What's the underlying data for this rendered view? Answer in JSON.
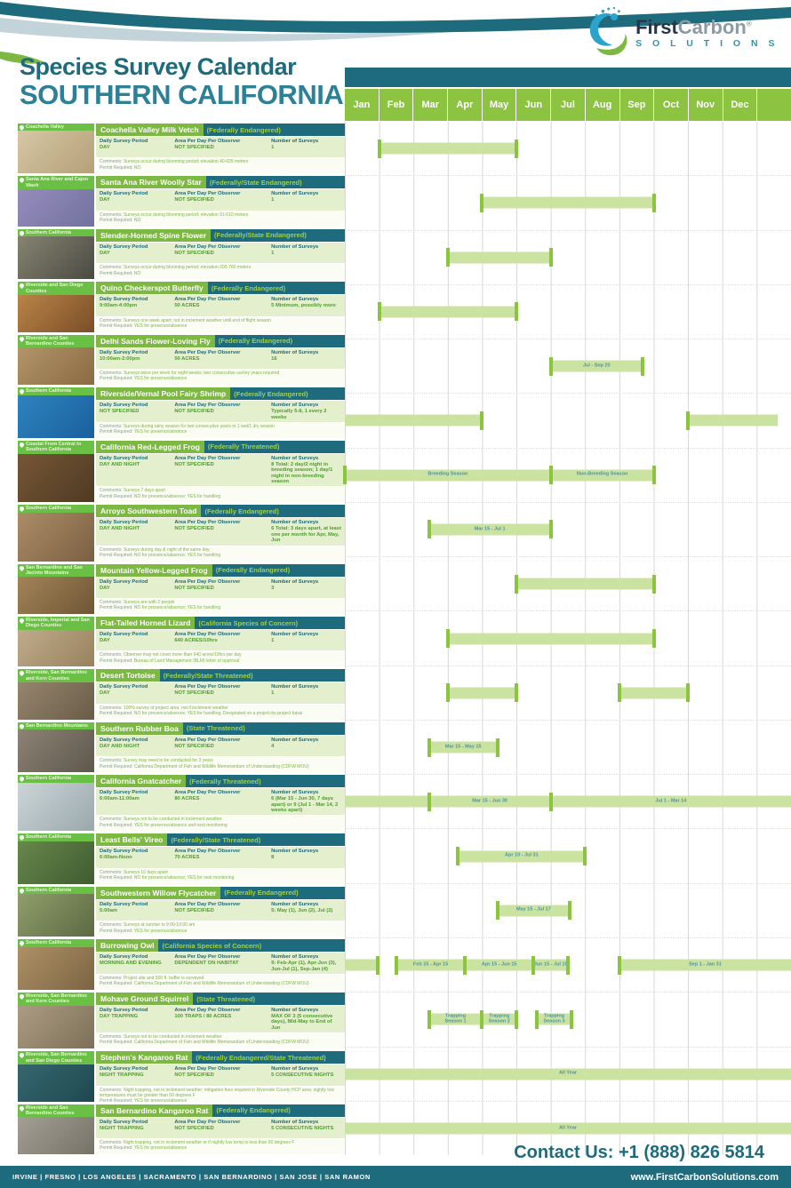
{
  "header": {
    "logo": {
      "word1": "First",
      "word2": "Carbon",
      "reg": "®",
      "word3": "S O L U T I O N S"
    },
    "title_line1": "Species Survey Calendar",
    "title_line2": "SOUTHERN CALIFORNIA"
  },
  "colors": {
    "teal": "#1d6b7d",
    "green": "#7cb842",
    "month_green": "#8cc441",
    "bar_fill": "#cbe3a0",
    "bar_cap": "#8bc43f",
    "panel_green": "#e3efcd"
  },
  "calendar": {
    "months": [
      "Jan",
      "Feb",
      "Mar",
      "Apr",
      "May",
      "Jun",
      "Jul",
      "Aug",
      "Sep",
      "Oct",
      "Nov",
      "Dec"
    ]
  },
  "labels": {
    "daily_survey_period": "Daily Survey Period",
    "area_per_day": "Area Per Day Per Observer",
    "num_surveys": "Number of Surveys",
    "comments": "Comments:",
    "permit": "Permit Required:"
  },
  "species": [
    {
      "location": "Coachella Valley",
      "name": "Coachella Valley Milk Vetch",
      "status": "(Federally Endangered)",
      "daily_survey_period": "DAY",
      "area_per_day": "NOT SPECIFIED",
      "num_surveys": "1",
      "comments": "Surveys occur during blooming period; elevation 40-655 meters",
      "permit": "NO",
      "photo_colors": [
        "#d8c9a8",
        "#b5a078"
      ],
      "bars": [
        {
          "s": 1,
          "e": 5
        }
      ]
    },
    {
      "location": "Santa Ana River and Cajon Wash",
      "name": "Santa Ana River Woolly Star",
      "status": "(Federally/State Endangered)",
      "daily_survey_period": "DAY",
      "area_per_day": "NOT SPECIFIED",
      "num_surveys": "1",
      "comments": "Surveys occur during blooming period; elevation 91-610 meters",
      "permit": "NO",
      "photo_colors": [
        "#9b8fc0",
        "#72729e"
      ],
      "bars": [
        {
          "s": 4,
          "e": 9
        }
      ]
    },
    {
      "location": "Southern California",
      "name": "Slender-Horned Spine Flower",
      "status": "(Federally/State Endangered)",
      "daily_survey_period": "DAY",
      "area_per_day": "NOT SPECIFIED",
      "num_surveys": "1",
      "comments": "Surveys occur during blooming period; elevation 200-760 meters",
      "permit": "NO",
      "photo_colors": [
        "#8a8774",
        "#4a4a42"
      ],
      "bars": [
        {
          "s": 3,
          "e": 6
        }
      ]
    },
    {
      "location": "Riverside and San Diego Counties",
      "name": "Quino Checkerspot Butterfly",
      "status": "(Federally Endangered)",
      "daily_survey_period": "9:00am-4:00pm",
      "area_per_day": "50 ACRES",
      "num_surveys": "5 Minimum, possibly more",
      "comments": "Surveys one week apart; not in inclement weather until end of flight season",
      "permit": "YES for presence/absence",
      "photo_colors": [
        "#c08a4a",
        "#7a4e28"
      ],
      "bars": [
        {
          "s": 1,
          "e": 5
        }
      ]
    },
    {
      "location": "Riverside and San Bernardino Counties",
      "name": "Delhi Sands Flower-Loving Fly",
      "status": "(Federally Endangered)",
      "daily_survey_period": "10:00am-2:00pm",
      "area_per_day": "50 ACRES",
      "num_surveys": "16",
      "comments": "Surveys twice per week for eight weeks; two consecutive survey years required",
      "permit": "YES for presence/absence",
      "photo_colors": [
        "#b89a6e",
        "#8a6a42"
      ],
      "bars": [
        {
          "s": 6,
          "e": 8.67,
          "label": "Jul - Sep 20"
        }
      ]
    },
    {
      "location": "Southern California",
      "name": "Riverside/Vernal Pool Fairy Shrimp",
      "status": "(Federally Endangered)",
      "daily_survey_period": "NOT SPECIFIED",
      "area_per_day": "NOT SPECIFIED",
      "num_surveys": "Typically 5-8, 1 every 2 weeks",
      "comments": "Surveys during rainy season for two consecutive years or 1 wet/1 dry season",
      "permit": "YES for presence/absence",
      "photo_colors": [
        "#2f86c0",
        "#1a5f9e"
      ],
      "bars": [
        {
          "s": 0,
          "e": 4,
          "cs": false
        },
        {
          "s": 10,
          "e": 12.6,
          "ce": false
        }
      ]
    },
    {
      "location": "Coastal From Central to Southern California",
      "name": "California Red-Legged Frog",
      "status": "(Federally Threatened)",
      "daily_survey_period": "DAY AND NIGHT",
      "area_per_day": "NOT SPECIFIED",
      "num_surveys": "8 Total: 2 day/2 night in breeding season; 1 day/1 night in non-breeding season",
      "comments": "Surveys 7 days apart",
      "permit": "NO for presence/absence; YES for handling",
      "photo_colors": [
        "#7a5a38",
        "#4e3a22"
      ],
      "bars": [
        {
          "s": 0,
          "e": 6,
          "label": "Breeding Season"
        },
        {
          "s": 6,
          "e": 9,
          "label": "Non-Breeding Season"
        }
      ]
    },
    {
      "location": "Southern California",
      "name": "Arroyo Southwestern Toad",
      "status": "(Federally Endangered)",
      "daily_survey_period": "DAY AND NIGHT",
      "area_per_day": "NOT SPECIFIED",
      "num_surveys": "6 Total: 3 days apart, at least one per month for Apr, May, Jun",
      "comments": "Surveys during day & night of the same day",
      "permit": "NO for presence/absence; YES for handling",
      "photo_colors": [
        "#b0906a",
        "#7a5f42"
      ],
      "bars": [
        {
          "s": 2.45,
          "e": 6,
          "label": "Mar 15 - Jul 1"
        }
      ]
    },
    {
      "location": "San Bernardino and San Jacinto Mountains",
      "name": "Mountain Yellow-Legged Frog",
      "status": "(Federally Endangered)",
      "daily_survey_period": "DAY",
      "area_per_day": "NOT SPECIFIED",
      "num_surveys": "3",
      "comments": "Surveys are with 2 people",
      "permit": "NO for presence/absence; YES for handling",
      "photo_colors": [
        "#a8895a",
        "#6e5636"
      ],
      "bars": [
        {
          "s": 5,
          "e": 9
        }
      ]
    },
    {
      "location": "Riverside, Imperial and San Diego Counties",
      "name": "Flat-Tailed Horned Lizard",
      "status": "(California Species of Concern)",
      "daily_survey_period": "DAY",
      "area_per_day": "640 ACRES/10hrs",
      "num_surveys": "1",
      "comments": "Observer may not cover more than 640 acres/10hrs per day",
      "permit": "Bureau of Land Management (BLM) letter of approval",
      "photo_colors": [
        "#c4b090",
        "#98825e"
      ],
      "bars": [
        {
          "s": 3,
          "e": 9
        }
      ]
    },
    {
      "location": "Riverside, San Bernardino and Kern Counties",
      "name": "Desert Tortoise",
      "status": "(Federally/State Threatened)",
      "daily_survey_period": "DAY",
      "area_per_day": "NOT SPECIFIED",
      "num_surveys": "1",
      "comments": "100% survey of project area; not if inclement weather",
      "permit": "NO for presence/absence; YES for handling; Designated on a project-by-project basis",
      "photo_colors": [
        "#9a8a72",
        "#6a5c48"
      ],
      "bars": [
        {
          "s": 3,
          "e": 5
        },
        {
          "s": 8,
          "e": 10
        }
      ]
    },
    {
      "location": "San Bernardino Mountains",
      "name": "Southern Rubber Boa",
      "status": "(State Threatened)",
      "daily_survey_period": "DAY AND NIGHT",
      "area_per_day": "NOT SPECIFIED",
      "num_surveys": "4",
      "comments": "Survey may need to be conducted for 3 years",
      "permit": "California Department of Fish and Wildlife Memorandum of Understanding (CDFW MOU)",
      "photo_colors": [
        "#8f8678",
        "#5e574c"
      ],
      "bars": [
        {
          "s": 2.45,
          "e": 4.45,
          "label": "Mar 15 - May 15"
        }
      ]
    },
    {
      "location": "Southern California",
      "name": "California Gnatcatcher",
      "status": "(Federally Threatened)",
      "daily_survey_period": "6:00am-11:00am",
      "area_per_day": "80 ACRES",
      "num_surveys": "6 (Mar 15 - Jun 30, 7 days apart) or 9 (Jul 1 - Mar 14, 2 weeks apart)",
      "comments": "Surveys not to be conducted in inclement weather",
      "permit": "YES for presence/absence and nest monitoring",
      "photo_colors": [
        "#cfd8da",
        "#9aa8ac"
      ],
      "bars": [
        {
          "s": 0,
          "e": 2.45,
          "cs": false,
          "ce": false
        },
        {
          "s": 2.45,
          "e": 6,
          "label": "Mar 15 - Jun 30"
        },
        {
          "s": 6,
          "e": 13,
          "ce": false,
          "label": "Jul 1 - Mar 14"
        }
      ]
    },
    {
      "location": "Southern California",
      "name": "Least Bells' Vireo",
      "status": "(Federally/State Threatened)",
      "daily_survey_period": "6:00am-Noon",
      "area_per_day": "70 ACRES",
      "num_surveys": "8",
      "comments": "Surveys 10 days apart",
      "permit": "NO for presence/absence; YES for nest monitoring",
      "photo_colors": [
        "#6a8a4e",
        "#3f5c30"
      ],
      "bars": [
        {
          "s": 3.3,
          "e": 7,
          "label": "Apr 10 - Jul 31"
        }
      ]
    },
    {
      "location": "Southern California",
      "name": "Southwestern Willow Flycatcher",
      "status": "(Federally Endangered)",
      "daily_survey_period": "5:00am",
      "area_per_day": "NOT SPECIFIED",
      "num_surveys": "5: May (1), Jun (2), Jul (2)",
      "comments": "Surveys at sunrise to 9:00-10:00 am",
      "permit": "YES for presence/absence",
      "photo_colors": [
        "#94a06e",
        "#5c6a42"
      ],
      "bars": [
        {
          "s": 4.45,
          "e": 6.55,
          "label": "May 15 - Jul 17"
        }
      ]
    },
    {
      "location": "Southern California",
      "name": "Burrowing Owl",
      "status": "(California Species of Concern)",
      "daily_survey_period": "MORNING AND EVENING",
      "area_per_day": "DEPENDENT ON HABITAT",
      "num_surveys": "9: Feb-Apr (1), Apr-Jun (3), Jun-Jul (1), Sep-Jan (4)",
      "comments": "Project site and 500 ft. buffer is surveyed",
      "permit": "California Department of Fish and Wildlife Memorandum of Understanding (CDFW MOU)",
      "photo_colors": [
        "#b09468",
        "#7c6443"
      ],
      "bars": [
        {
          "s": 0,
          "e": 0.95,
          "cs": false
        },
        {
          "s": 1.5,
          "e": 3.5,
          "label": "Feb 15 - Apr 15"
        },
        {
          "s": 3.5,
          "e": 5.5,
          "label": "Apr 15 - Jun 15"
        },
        {
          "s": 5.5,
          "e": 6.5,
          "label": "Jun 15 - Jul 15"
        },
        {
          "s": 8,
          "e": 13,
          "ce": false,
          "label": "Sep 1 - Jan 31"
        }
      ]
    },
    {
      "location": "Riverside, San Bernardino and Kern Counties",
      "name": "Mohave Ground Squirrel",
      "status": "(State Threatened)",
      "daily_survey_period": "DAY TRAPPING",
      "area_per_day": "100 TRAPS / 80 ACRES",
      "num_surveys": "MAX OF 3 (5 consecutive days), Mid-May to End of Jun",
      "comments": "Surveys not to be conducted in inclement weather",
      "permit": "California Department of Fish and Wildlife Memorandum of Understanding (CDFW MOU)",
      "photo_colors": [
        "#b0a088",
        "#7e7058"
      ],
      "bars": [
        {
          "s": 2.45,
          "e": 4,
          "label": "Trapping\nSeason 1"
        },
        {
          "s": 4,
          "e": 5,
          "label": "Trapping\nSeason 2"
        },
        {
          "s": 5.6,
          "e": 6.6,
          "label": "Trapping\nSeason 3"
        }
      ]
    },
    {
      "location": "Riverside, San Bernardino and San Diego Counties",
      "name": "Stephen's Kangaroo Rat",
      "status": "(Federally Endangered/State Threatened)",
      "daily_survey_period": "NIGHT TRAPPING",
      "area_per_day": "NOT SPECIFIED",
      "num_surveys": "5 CONSECUTIVE NIGHTS",
      "comments": "Night trapping, not in inclement weather; mitigation fees required in Riverside County HCP area; nightly low temperatures must be greater than 50 degrees F",
      "permit": "YES for presence/absence",
      "photo_colors": [
        "#3a6a72",
        "#1e4850"
      ],
      "bars": [
        {
          "s": 0,
          "e": 13,
          "cs": false,
          "ce": false,
          "label": "All Year"
        }
      ]
    },
    {
      "location": "Riverside and San Bernardino Counties",
      "name": "San Bernardino Kangaroo Rat",
      "status": "(Federally Endangered)",
      "daily_survey_period": "NIGHT TRAPPING",
      "area_per_day": "NOT SPECIFIED",
      "num_surveys": "5 CONSECUTIVE NIGHTS",
      "comments": "Night trapping, not in inclement weather or if nightly low temp is less than 50 degrees F",
      "permit": "YES for presence/absence",
      "photo_colors": [
        "#a8a49a",
        "#767268"
      ],
      "bars": [
        {
          "s": 0,
          "e": 13,
          "cs": false,
          "ce": false,
          "label": "All Year"
        }
      ]
    }
  ],
  "footer": {
    "contact": "Contact Us: +1 (888) 826 5814",
    "cities": "IRVINE  |  FRESNO  |  LOS ANGELES  |  SACRAMENTO  |  SAN BERNARDINO  |  SAN JOSE  |  SAN RAMON",
    "website": "www.FirstCarbonSolutions.com"
  }
}
